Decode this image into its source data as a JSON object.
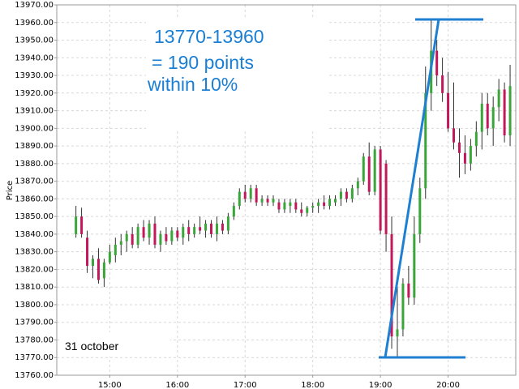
{
  "chart_data": {
    "type": "candlestick",
    "y_label": "Price",
    "annotations": [
      "13770-13960",
      "= 190 points",
      "within 10%",
      "31 october"
    ],
    "xlim": [
      853,
      1260
    ],
    "xticks": [
      {
        "value": 900,
        "label": "15:00"
      },
      {
        "value": 960,
        "label": "16:00"
      },
      {
        "value": 1020,
        "label": "17:00"
      },
      {
        "value": 1080,
        "label": "18:00"
      },
      {
        "value": 1140,
        "label": "19:00"
      },
      {
        "value": 1200,
        "label": "20:00"
      }
    ],
    "ylim": [
      13760,
      13970
    ],
    "yticks": [
      {
        "value": 13760,
        "label": "13760.00"
      },
      {
        "value": 13770,
        "label": "13770.00"
      },
      {
        "value": 13780,
        "label": "13780.00"
      },
      {
        "value": 13790,
        "label": "13790.00"
      },
      {
        "value": 13800,
        "label": "13800.00"
      },
      {
        "value": 13810,
        "label": "13810.00"
      },
      {
        "value": 13820,
        "label": "13820.00"
      },
      {
        "value": 13830,
        "label": "13830.00"
      },
      {
        "value": 13840,
        "label": "13840.00"
      },
      {
        "value": 13850,
        "label": "13850.00"
      },
      {
        "value": 13860,
        "label": "13860.00"
      },
      {
        "value": 13870,
        "label": "13870.00"
      },
      {
        "value": 13880,
        "label": "13880.00"
      },
      {
        "value": 13890,
        "label": "13890.00"
      },
      {
        "value": 13900,
        "label": "13900.00"
      },
      {
        "value": 13910,
        "label": "13910.00"
      },
      {
        "value": 13920,
        "label": "13920.00"
      },
      {
        "value": 13930,
        "label": "13930.00"
      },
      {
        "value": 13940,
        "label": "13940.00"
      },
      {
        "value": 13950,
        "label": "13950.00"
      },
      {
        "value": 13960,
        "label": "13960.00"
      },
      {
        "value": 13970,
        "label": "13970.00"
      }
    ],
    "grid": true,
    "up_color": "#3aa63a",
    "down_color": "#c2185b",
    "x": [
      870,
      875,
      880,
      885,
      890,
      895,
      900,
      905,
      910,
      915,
      920,
      925,
      930,
      935,
      940,
      945,
      950,
      955,
      960,
      965,
      970,
      975,
      980,
      985,
      990,
      995,
      1000,
      1005,
      1010,
      1015,
      1020,
      1025,
      1030,
      1035,
      1040,
      1045,
      1050,
      1055,
      1060,
      1065,
      1070,
      1075,
      1080,
      1085,
      1090,
      1095,
      1100,
      1105,
      1110,
      1115,
      1120,
      1125,
      1130,
      1135,
      1140,
      1145,
      1150,
      1155,
      1160,
      1165,
      1170,
      1175,
      1180,
      1185,
      1190,
      1195,
      1200,
      1205,
      1210,
      1215,
      1220,
      1225,
      1230,
      1235,
      1240,
      1245,
      1250,
      1255
    ],
    "open": [
      13840,
      13850,
      13838,
      13822,
      13826,
      13815,
      13824,
      13828,
      13834,
      13836,
      13840,
      13834,
      13844,
      13838,
      13846,
      13834,
      13840,
      13836,
      13842,
      13838,
      13844,
      13840,
      13844,
      13842,
      13846,
      13840,
      13846,
      13842,
      13850,
      13856,
      13864,
      13860,
      13866,
      13858,
      13860,
      13858,
      13858,
      13854,
      13856,
      13858,
      13854,
      13852,
      13855,
      13856,
      13858,
      13856,
      13858,
      13860,
      13864,
      13860,
      13866,
      13870,
      13884,
      13864,
      13888,
      13880,
      13840,
      13782,
      13786,
      13812,
      13804,
      13840,
      13866,
      13920,
      13944,
      13930,
      13920,
      13900,
      13892,
      13886,
      13880,
      13890,
      13898,
      13914,
      13900,
      13912,
      13922,
      13896
    ],
    "high": [
      13856,
      13855,
      13842,
      13828,
      13832,
      13826,
      13834,
      13838,
      13840,
      13842,
      13844,
      13846,
      13848,
      13848,
      13850,
      13842,
      13844,
      13844,
      13844,
      13846,
      13848,
      13846,
      13850,
      13848,
      13848,
      13850,
      13848,
      13852,
      13858,
      13866,
      13868,
      13868,
      13868,
      13862,
      13862,
      13862,
      13860,
      13860,
      13860,
      13860,
      13858,
      13856,
      13858,
      13860,
      13862,
      13862,
      13862,
      13866,
      13866,
      13868,
      13872,
      13886,
      13892,
      13890,
      13890,
      13882,
      13850,
      13810,
      13815,
      13822,
      13850,
      13872,
      13935,
      13962,
      13950,
      13940,
      13932,
      13926,
      13900,
      13896,
      13894,
      13904,
      13920,
      13920,
      13918,
      13928,
      13926,
      13936
    ],
    "low": [
      13838,
      13838,
      13818,
      13815,
      13812,
      13810,
      13823,
      13824,
      13828,
      13830,
      13832,
      13832,
      13836,
      13834,
      13832,
      13830,
      13834,
      13834,
      13836,
      13834,
      13836,
      13838,
      13840,
      13838,
      13838,
      13836,
      13840,
      13840,
      13848,
      13854,
      13858,
      13858,
      13856,
      13856,
      13856,
      13856,
      13852,
      13852,
      13852,
      13852,
      13850,
      13850,
      13852,
      13852,
      13854,
      13854,
      13856,
      13856,
      13858,
      13858,
      13862,
      13868,
      13862,
      13862,
      13840,
      13830,
      13775,
      13770,
      13782,
      13800,
      13800,
      13835,
      13860,
      13910,
      13924,
      13915,
      13898,
      13888,
      13872,
      13874,
      13876,
      13884,
      13888,
      13896,
      13890,
      13904,
      13892,
      13890
    ],
    "close": [
      13850,
      13840,
      13822,
      13826,
      13814,
      13824,
      13830,
      13834,
      13836,
      13840,
      13834,
      13844,
      13838,
      13846,
      13834,
      13840,
      13836,
      13842,
      13838,
      13844,
      13840,
      13844,
      13842,
      13846,
      13840,
      13846,
      13842,
      13850,
      13856,
      13864,
      13860,
      13866,
      13858,
      13860,
      13858,
      13860,
      13854,
      13858,
      13858,
      13854,
      13852,
      13855,
      13856,
      13858,
      13856,
      13860,
      13860,
      13864,
      13860,
      13866,
      13870,
      13884,
      13864,
      13888,
      13842,
      13840,
      13782,
      13786,
      13812,
      13804,
      13840,
      13866,
      13920,
      13944,
      13930,
      13920,
      13900,
      13892,
      13886,
      13880,
      13890,
      13898,
      13914,
      13900,
      13912,
      13922,
      13896,
      13924
    ]
  }
}
